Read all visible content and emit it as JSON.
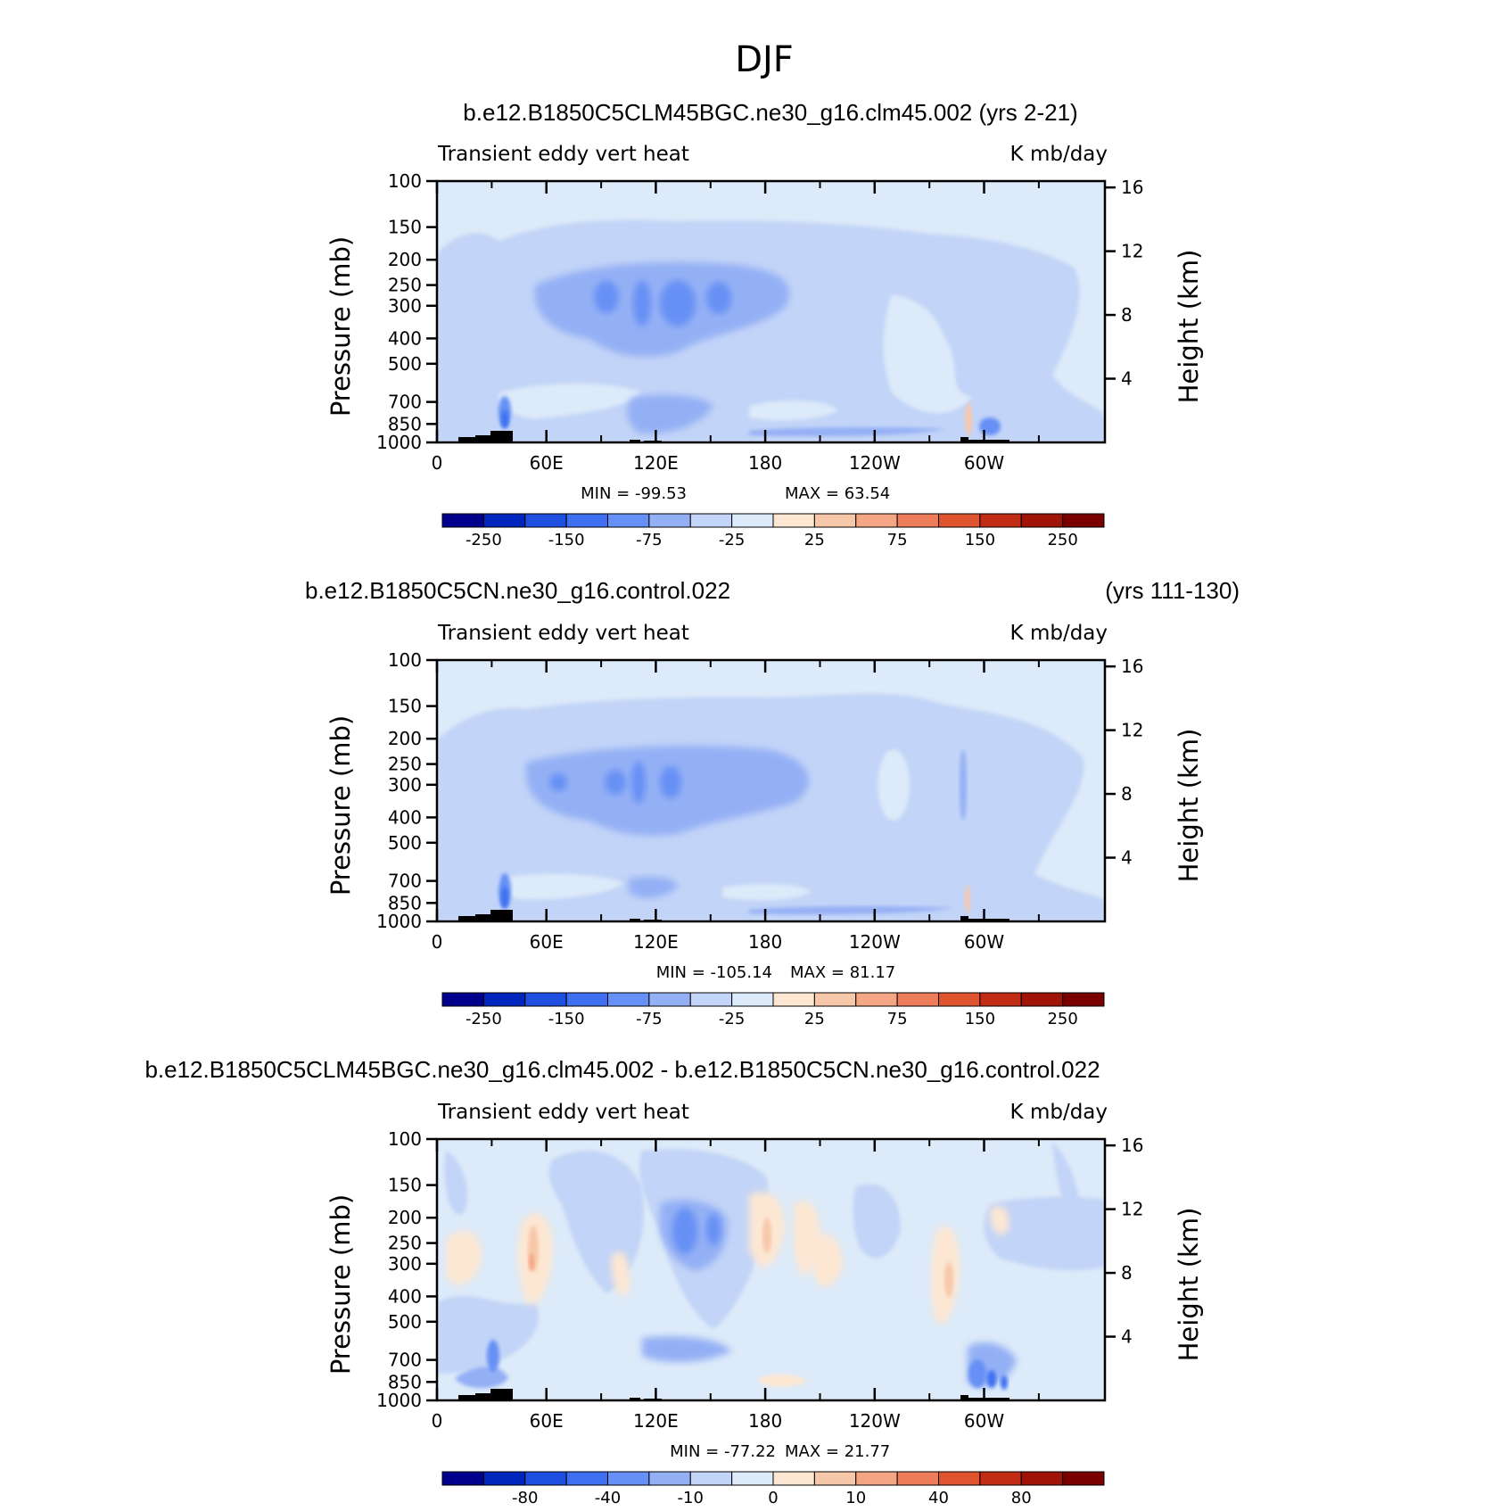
{
  "figure": {
    "title": "DJF"
  },
  "colors": {
    "fill_scale": [
      "#00008c",
      "#0026bd",
      "#1f4fe0",
      "#3d6ff0",
      "#6690f5",
      "#94b0f5",
      "#c2d4f7",
      "#dceaf9",
      "#fde7d3",
      "#f7c7a9",
      "#f3a584",
      "#ec7c5a",
      "#e0532f",
      "#c22b14",
      "#a01408",
      "#7a0000"
    ],
    "terrain": "#000000"
  },
  "chart_data": [
    {
      "type": "heatmap",
      "title": "b.e12.B1850C5CLM45BGC.ne30_g16.clm45.002 (yrs 2-21)",
      "left_string": "Transient eddy vert heat",
      "right_string": "K mb/day",
      "xlabel": "",
      "ylabel": "Pressure (mb)",
      "ylabel_right": "Height (km)",
      "x_ticks": [
        "0",
        "60E",
        "120E",
        "180",
        "120W",
        "60W"
      ],
      "y_ticks": [
        "100",
        "150",
        "200",
        "250",
        "300",
        "400",
        "500",
        "700",
        "850",
        "1000"
      ],
      "y_right_ticks": [
        "16",
        "12",
        "8",
        "4"
      ],
      "min_label": "MIN = -99.53",
      "max_label": "MAX = 63.54",
      "colorbar_labels": [
        "-250",
        "-150",
        "-75",
        "-25",
        "25",
        "75",
        "150",
        "250"
      ],
      "x_range": [
        0,
        358
      ],
      "y_range": [
        1000,
        100
      ],
      "min": -99.53,
      "max": 63.54
    },
    {
      "type": "heatmap",
      "title": "b.e12.B1850C5CN.ne30_g16.control.022",
      "title_right": "(yrs 111-130)",
      "left_string": "Transient eddy vert heat",
      "right_string": "K mb/day",
      "xlabel": "",
      "ylabel": "Pressure (mb)",
      "ylabel_right": "Height (km)",
      "x_ticks": [
        "0",
        "60E",
        "120E",
        "180",
        "120W",
        "60W"
      ],
      "y_ticks": [
        "100",
        "150",
        "200",
        "250",
        "300",
        "400",
        "500",
        "700",
        "850",
        "1000"
      ],
      "y_right_ticks": [
        "16",
        "12",
        "8",
        "4"
      ],
      "min_label": "MIN = -105.14",
      "max_label": "MAX = 81.17",
      "colorbar_labels": [
        "-250",
        "-150",
        "-75",
        "-25",
        "25",
        "75",
        "150",
        "250"
      ],
      "x_range": [
        0,
        358
      ],
      "y_range": [
        1000,
        100
      ],
      "min": -105.14,
      "max": 81.17
    },
    {
      "type": "heatmap",
      "title": "b.e12.B1850C5CLM45BGC.ne30_g16.clm45.002 - b.e12.B1850C5CN.ne30_g16.control.022",
      "left_string": "Transient eddy vert heat",
      "right_string": "K mb/day",
      "xlabel": "",
      "ylabel": "Pressure (mb)",
      "ylabel_right": "Height (km)",
      "x_ticks": [
        "0",
        "60E",
        "120E",
        "180",
        "120W",
        "60W"
      ],
      "y_ticks": [
        "100",
        "150",
        "200",
        "250",
        "300",
        "400",
        "500",
        "700",
        "850",
        "1000"
      ],
      "y_right_ticks": [
        "16",
        "12",
        "8",
        "4"
      ],
      "min_label": "MIN = -77.22",
      "max_label": "MAX = 21.77",
      "colorbar_labels": [
        "-80",
        "-40",
        "-10",
        "0",
        "10",
        "40",
        "80"
      ],
      "x_range": [
        0,
        358
      ],
      "y_range": [
        1000,
        100
      ],
      "min": -77.22,
      "max": 21.77
    }
  ]
}
